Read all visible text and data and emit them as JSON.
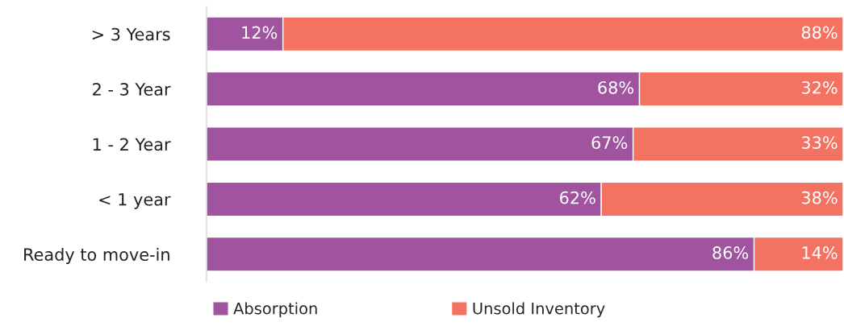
{
  "chart_data": {
    "type": "bar",
    "orientation": "horizontal",
    "stacked": true,
    "categories": [
      "> 3 Years",
      "2 - 3 Year",
      "1 - 2 Year",
      "< 1 year",
      "Ready to move-in"
    ],
    "series": [
      {
        "name": "Absorption",
        "color": "#a054a0",
        "values": [
          12,
          68,
          67,
          62,
          86
        ],
        "value_labels": [
          "12%",
          "68%",
          "67%",
          "62%",
          "86%"
        ]
      },
      {
        "name": "Unsold Inventory",
        "color": "#f47262",
        "values": [
          88,
          32,
          33,
          38,
          14
        ],
        "value_labels": [
          "88%",
          "32%",
          "33%",
          "38%",
          "14%"
        ]
      }
    ],
    "xlim": [
      0,
      100
    ],
    "tick_labels": "y",
    "grid": false,
    "legend": "bottom"
  }
}
